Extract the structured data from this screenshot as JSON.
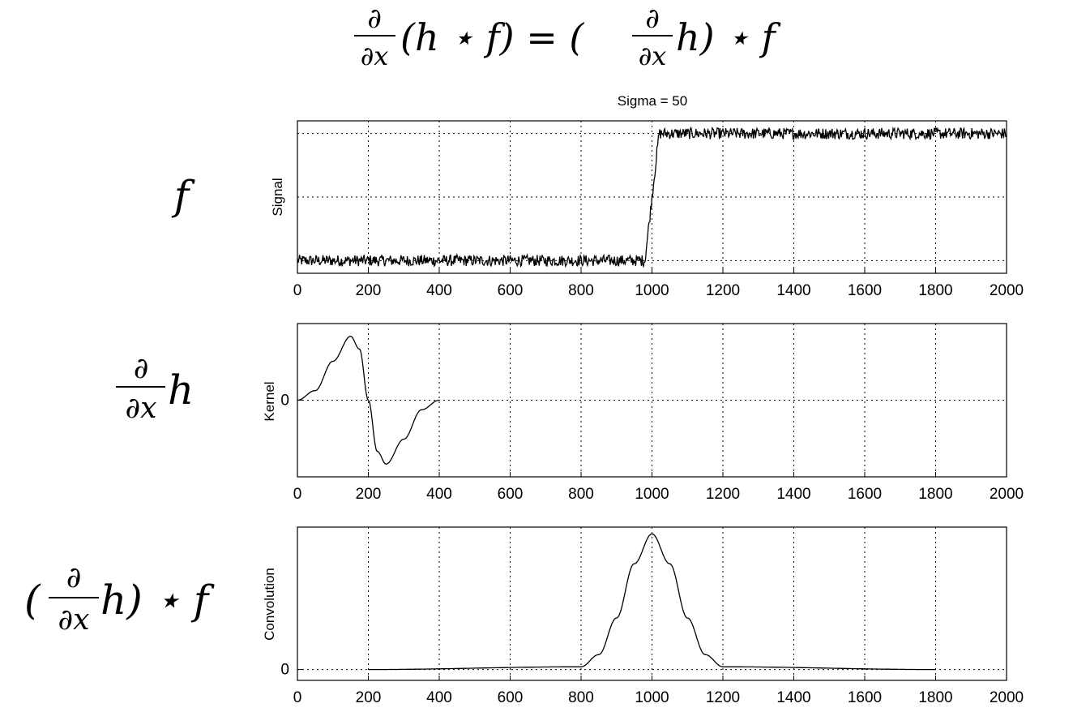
{
  "equation": {
    "lhs_numerator": "∂",
    "lhs_denominator": "∂x",
    "lhs_rest": "(h ⋆ f) = (",
    "rhs_numerator": "∂",
    "rhs_denominator": "∂x",
    "rhs_rest": "h) ⋆ f"
  },
  "row_labels": {
    "signal": "f",
    "kernel_numerator": "∂",
    "kernel_denominator": "∂x",
    "kernel_rest": "h",
    "conv_open": "(",
    "conv_numerator": "∂",
    "conv_denominator": "∂x",
    "conv_rest": "h) ⋆ f"
  },
  "chart_data": [
    {
      "type": "line",
      "title": "Sigma = 50",
      "ylabel": "Signal",
      "xlim": [
        0,
        2000
      ],
      "ylim": [
        -0.1,
        1.1
      ],
      "xticks": [
        0,
        200,
        400,
        600,
        800,
        1000,
        1200,
        1400,
        1600,
        1800,
        2000
      ],
      "ytick_labels": [],
      "grid": true,
      "series": [
        {
          "shape": "noisy step",
          "x": [
            0,
            980,
            1020,
            2000
          ],
          "y": [
            0,
            0,
            1,
            1
          ],
          "noise_amplitude": 0.045
        }
      ]
    },
    {
      "type": "line",
      "ylabel": "Kernel",
      "xlim": [
        0,
        2000
      ],
      "ylim": [
        -1.2,
        1.2
      ],
      "xticks": [
        0,
        200,
        400,
        600,
        800,
        1000,
        1200,
        1400,
        1600,
        1800,
        2000
      ],
      "yticks": [
        0
      ],
      "ytick_labels": [
        "0"
      ],
      "grid": true,
      "series": [
        {
          "shape": "derivative of gaussian",
          "x": [
            0,
            50,
            100,
            150,
            175,
            200,
            225,
            250,
            300,
            350,
            400
          ],
          "y": [
            0.0,
            0.15,
            0.61,
            1.0,
            0.8,
            0.0,
            -0.8,
            -1.0,
            -0.61,
            -0.15,
            0.0
          ]
        }
      ]
    },
    {
      "type": "line",
      "ylabel": "Convolution",
      "xlim": [
        0,
        2000
      ],
      "ylim": [
        -0.08,
        1.05
      ],
      "xticks": [
        0,
        200,
        400,
        600,
        800,
        1000,
        1200,
        1400,
        1600,
        1800,
        2000
      ],
      "yticks": [
        0
      ],
      "ytick_labels": [
        "0"
      ],
      "grid": true,
      "series": [
        {
          "shape": "gaussian peak",
          "x": [
            200,
            800,
            850,
            900,
            950,
            1000,
            1050,
            1100,
            1150,
            1200,
            1800
          ],
          "y": [
            0,
            0.02,
            0.11,
            0.38,
            0.78,
            1.0,
            0.78,
            0.38,
            0.11,
            0.02,
            0
          ]
        }
      ]
    }
  ]
}
